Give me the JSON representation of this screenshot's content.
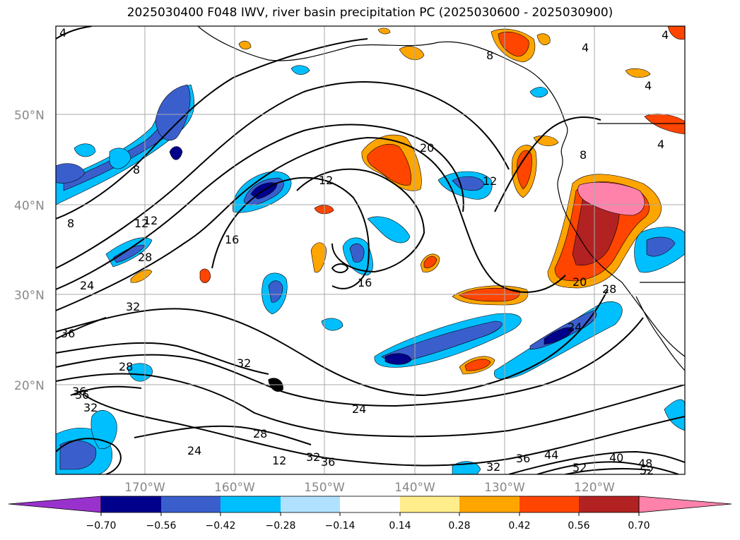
{
  "title": "2025030400 F048 IWV, river basin precipitation PC (2025030600 - 2025030900)",
  "lat_labels": [
    "50°N",
    "40°N",
    "30°N",
    "20°N"
  ],
  "lon_labels": [
    "170°W",
    "160°W",
    "150°W",
    "140°W",
    "130°W",
    "120°W"
  ],
  "colorbar": {
    "tick_labels": [
      "−0.70",
      "−0.56",
      "−0.42",
      "−0.28",
      "−0.14",
      "0.14",
      "0.28",
      "0.42",
      "0.56",
      "0.70"
    ],
    "colors": [
      "#9932cc",
      "#00008b",
      "#3a5fcd",
      "#00bfff",
      "#b0e2ff",
      "#ffffff",
      "#ffec8b",
      "#ffa500",
      "#ff4500",
      "#b22222",
      "#ff82ab"
    ]
  },
  "contour_labels": [
    {
      "text": "4"
    },
    {
      "text": "4"
    },
    {
      "text": "4"
    },
    {
      "text": "4"
    },
    {
      "text": "4"
    },
    {
      "text": "8"
    },
    {
      "text": "8"
    },
    {
      "text": "8"
    },
    {
      "text": "8"
    },
    {
      "text": "12"
    },
    {
      "text": "12"
    },
    {
      "text": "12"
    },
    {
      "text": "16"
    },
    {
      "text": "16"
    },
    {
      "text": "20"
    },
    {
      "text": "20"
    },
    {
      "text": "24"
    },
    {
      "text": "24"
    },
    {
      "text": "24"
    },
    {
      "text": "24"
    },
    {
      "text": "28"
    },
    {
      "text": "28"
    },
    {
      "text": "28"
    },
    {
      "text": "28"
    },
    {
      "text": "32"
    },
    {
      "text": "32"
    },
    {
      "text": "32"
    },
    {
      "text": "32"
    },
    {
      "text": "32"
    },
    {
      "text": "36"
    },
    {
      "text": "36"
    },
    {
      "text": "36"
    },
    {
      "text": "36"
    },
    {
      "text": "40"
    },
    {
      "text": "44"
    },
    {
      "text": "48"
    },
    {
      "text": "52"
    },
    {
      "text": "52"
    },
    {
      "text": "12"
    },
    {
      "text": "36"
    },
    {
      "text": "12"
    }
  ]
}
